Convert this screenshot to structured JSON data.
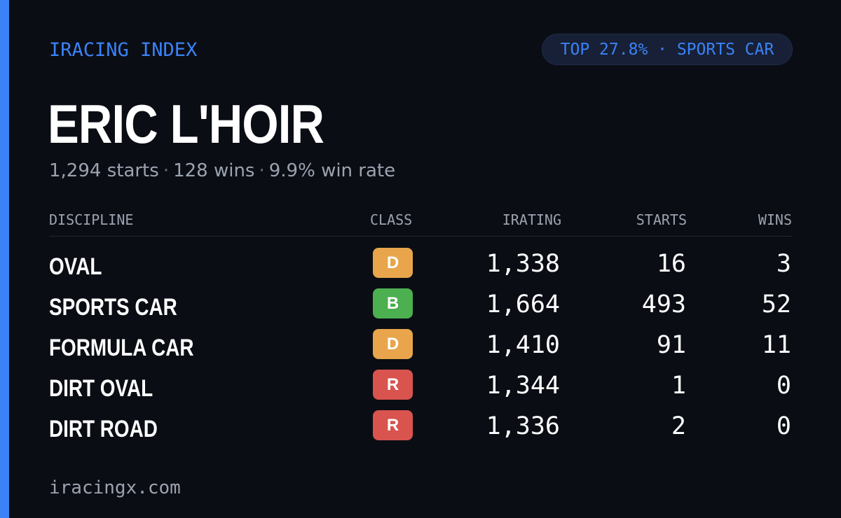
{
  "header": {
    "brand": "IRACING INDEX",
    "rank_badge": "TOP 27.8% · SPORTS CAR"
  },
  "driver": {
    "name": "ERIC L'HOIR",
    "starts": "1,294 starts",
    "wins": "128 wins",
    "win_rate": "9.9% win rate"
  },
  "table": {
    "headers": {
      "discipline": "DISCIPLINE",
      "class": "CLASS",
      "irating": "IRATING",
      "starts": "STARTS",
      "wins": "WINS"
    },
    "rows": [
      {
        "discipline": "OVAL",
        "class": "D",
        "class_color": "#e8a54b",
        "irating": "1,338",
        "starts": "16",
        "wins": "3"
      },
      {
        "discipline": "SPORTS CAR",
        "class": "B",
        "class_color": "#4caf50",
        "irating": "1,664",
        "starts": "493",
        "wins": "52"
      },
      {
        "discipline": "FORMULA CAR",
        "class": "D",
        "class_color": "#e8a54b",
        "irating": "1,410",
        "starts": "91",
        "wins": "11"
      },
      {
        "discipline": "DIRT OVAL",
        "class": "R",
        "class_color": "#d9534f",
        "irating": "1,344",
        "starts": "1",
        "wins": "0"
      },
      {
        "discipline": "DIRT ROAD",
        "class": "R",
        "class_color": "#d9534f",
        "irating": "1,336",
        "starts": "2",
        "wins": "0"
      }
    ]
  },
  "footer": {
    "site": "iracingx.com"
  },
  "colors": {
    "accent": "#3b82f6",
    "background": "#0a0d14"
  }
}
